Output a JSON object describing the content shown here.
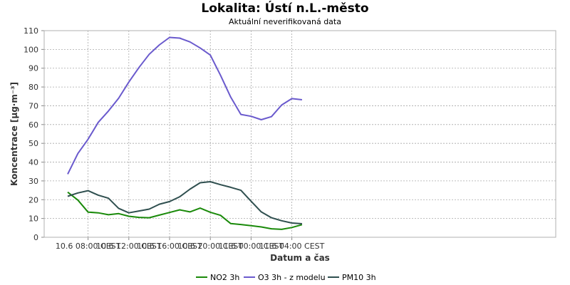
{
  "title": "Lokalita: Ústí n.L.-město",
  "subtitle": "Aktuální neverifikovaná data",
  "chart_data": {
    "type": "line",
    "title": "Lokalita: Ústí n.L.-město",
    "subtitle": "Aktuální neverifikovaná data",
    "xlabel": "Datum a čas",
    "ylabel": "Koncentrace [µg·m⁻³]",
    "ylim": [
      0,
      110
    ],
    "yticks": [
      0,
      10,
      20,
      30,
      40,
      50,
      60,
      70,
      80,
      90,
      100,
      110
    ],
    "x": [
      "10.6 06:00",
      "10.6 07:00",
      "10.6 08:00",
      "10.6 09:00",
      "10.6 10:00",
      "10.6 11:00",
      "10.6 12:00",
      "10.6 13:00",
      "10.6 14:00",
      "10.6 15:00",
      "10.6 16:00",
      "10.6 17:00",
      "10.6 18:00",
      "10.6 19:00",
      "10.6 20:00",
      "10.6 21:00",
      "10.6 22:00",
      "10.6 23:00",
      "11.6 00:00",
      "11.6 01:00",
      "11.6 02:00",
      "11.6 03:00",
      "11.6 04:00",
      "11.6 05:00"
    ],
    "xticks": [
      {
        "x": "10.6 08:00",
        "label": "10.6 08:00 CEST"
      },
      {
        "x": "10.6 12:00",
        "label": "10.6 12:00 CEST"
      },
      {
        "x": "10.6 16:00",
        "label": "10.6 16:00 CEST"
      },
      {
        "x": "10.6 20:00",
        "label": "10.6 20:00 CEST"
      },
      {
        "x": "11.6 00:00",
        "label": "11.6 00:00 CEST"
      },
      {
        "x": "11.6 04:00",
        "label": "11.6 04:00 CEST"
      }
    ],
    "grid": true,
    "legend_position": "bottom",
    "series": [
      {
        "name": "NO2 3h",
        "color": "#1a8a0a",
        "values": [
          24,
          19.8,
          13.4,
          13,
          12,
          12.6,
          11.2,
          10.6,
          10.4,
          11.8,
          13.2,
          14.6,
          13.5,
          15.5,
          13.3,
          11.7,
          7.3,
          6.8,
          6.2,
          5.5,
          4.5,
          4.2,
          5.2,
          6.7
        ]
      },
      {
        "name": "O3 3h - z modelu",
        "color": "#6a5acd",
        "values": [
          33.6,
          44.6,
          52.2,
          61.2,
          67.2,
          74,
          82.6,
          90.4,
          97.4,
          102.4,
          106.4,
          106,
          104,
          100.8,
          97,
          86.2,
          74.6,
          65.4,
          64.4,
          62.6,
          64.2,
          70.4,
          73.8,
          73.2
        ]
      },
      {
        "name": "PM10 3h",
        "color": "#2f4f4f",
        "values": [
          21.8,
          23.6,
          24.8,
          22.4,
          20.8,
          15.4,
          13,
          14,
          15,
          17.6,
          19,
          21.6,
          25.6,
          29,
          29.6,
          28,
          26.6,
          25,
          19.2,
          13.5,
          10.4,
          8.8,
          7.6,
          7.2
        ]
      }
    ]
  }
}
